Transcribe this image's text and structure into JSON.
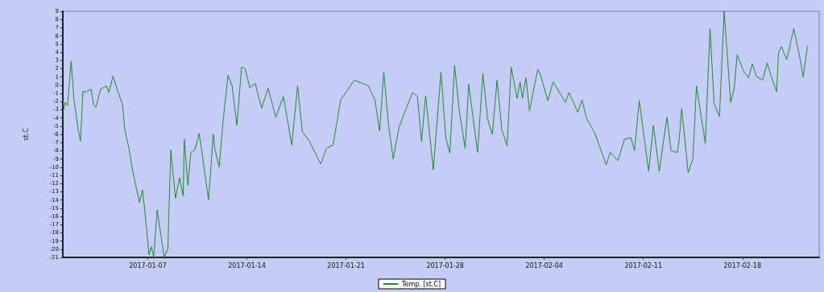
{
  "chart_data": {
    "type": "line",
    "ylabel": "st.C",
    "legend": "bottom",
    "grid": false,
    "marker": "none",
    "line_style": "solid",
    "xlim": [
      "2017-01-01",
      "2017-02-23T10:00"
    ],
    "xticks": [
      "2017-01-07",
      "2017-01-14",
      "2017-01-21",
      "2017-01-28",
      "2017-02-04",
      "2017-02-11",
      "2017-02-18"
    ],
    "ylim": [
      -21,
      9
    ],
    "yticks": [
      -21,
      -20,
      -19,
      -18,
      -17,
      -16,
      -15,
      -14,
      -13,
      -12,
      -11,
      -10,
      -9,
      -8,
      -7,
      -6,
      -5,
      -4,
      -3,
      -2,
      -1,
      0,
      1,
      2,
      3,
      4,
      5,
      6,
      7,
      8,
      9
    ],
    "x": [
      "2017-01-01T01:00",
      "2017-01-01T04:00",
      "2017-01-01T08:00",
      "2017-01-01T14:00",
      "2017-01-01T19:00",
      "2017-01-02T02:00",
      "2017-01-02T06:00",
      "2017-01-02T10:00",
      "2017-01-02T16:00",
      "2017-01-03T00:00",
      "2017-01-03T04:00",
      "2017-01-03T08:00",
      "2017-01-03T16:00",
      "2017-01-04T02:00",
      "2017-01-04T06:00",
      "2017-01-04T13:00",
      "2017-01-04T22:00",
      "2017-01-05T05:00",
      "2017-01-05T09:00",
      "2017-01-05T16:00",
      "2017-01-05T23:00",
      "2017-01-06T03:00",
      "2017-01-06T10:00",
      "2017-01-06T15:00",
      "2017-01-06T19:00",
      "2017-01-07T02:00",
      "2017-01-07T06:00",
      "2017-01-07T10:00",
      "2017-01-07T16:00",
      "2017-01-07T23:00",
      "2017-01-08T04:00",
      "2017-01-08T10:00",
      "2017-01-08T15:00",
      "2017-01-08T23:00",
      "2017-01-09T06:00",
      "2017-01-09T12:00",
      "2017-01-09T14:00",
      "2017-01-09T20:00",
      "2017-01-10T01:00",
      "2017-01-10T08:00",
      "2017-01-10T15:00",
      "2017-01-10T22:00",
      "2017-01-11T07:00",
      "2017-01-11T15:00",
      "2017-01-11T18:00",
      "2017-01-12T01:00",
      "2017-01-12T08:00",
      "2017-01-12T16:00",
      "2017-01-12T23:00",
      "2017-01-13T07:00",
      "2017-01-13T15:00",
      "2017-01-13T21:00",
      "2017-01-14T05:00",
      "2017-01-14T14:00",
      "2017-01-15T01:00",
      "2017-01-15T12:00",
      "2017-01-16T01:00",
      "2017-01-16T14:00",
      "2017-01-17T04:00",
      "2017-01-17T14:00",
      "2017-01-17T22:00",
      "2017-01-18T09:00",
      "2017-01-19T05:00",
      "2017-01-19T15:00",
      "2017-01-20T02:00",
      "2017-01-20T15:00",
      "2017-01-21T14:00",
      "2017-01-22T14:00",
      "2017-01-23T01:00",
      "2017-01-23T09:00",
      "2017-01-23T16:00",
      "2017-01-24T00:00",
      "2017-01-24T08:00",
      "2017-01-24T18:00",
      "2017-01-25T10:00",
      "2017-01-25T17:00",
      "2017-01-26T01:00",
      "2017-01-26T08:00",
      "2017-01-26T15:00",
      "2017-01-27T04:00",
      "2017-01-27T17:00",
      "2017-01-28T01:00",
      "2017-01-28T08:00",
      "2017-01-28T16:00",
      "2017-01-29T00:00",
      "2017-01-29T10:00",
      "2017-01-29T16:00",
      "2017-01-30T07:00",
      "2017-01-30T16:00",
      "2017-01-31T00:00",
      "2017-01-31T08:00",
      "2017-01-31T16:00",
      "2017-02-01T00:00",
      "2017-02-01T09:00",
      "2017-02-01T16:00",
      "2017-02-02T02:00",
      "2017-02-02T07:00",
      "2017-02-02T11:00",
      "2017-02-02T17:00",
      "2017-02-02T23:00",
      "2017-02-03T13:00",
      "2017-02-03T17:00",
      "2017-02-04T06:00",
      "2017-02-04T15:00",
      "2017-02-05T12:00",
      "2017-02-05T18:00",
      "2017-02-06T09:00",
      "2017-02-06T16:00",
      "2017-02-07T00:00",
      "2017-02-07T14:00",
      "2017-02-08T09:00",
      "2017-02-08T16:00",
      "2017-02-09T05:00",
      "2017-02-09T16:00",
      "2017-02-10T03:00",
      "2017-02-10T09:00",
      "2017-02-10T17:00",
      "2017-02-11T09:00",
      "2017-02-11T17:00",
      "2017-02-12T03:00",
      "2017-02-12T16:00",
      "2017-02-12T23:00",
      "2017-02-13T10:00",
      "2017-02-13T13:00",
      "2017-02-13T17:00",
      "2017-02-14T04:00",
      "2017-02-14T12:00",
      "2017-02-14T18:00",
      "2017-02-15T09:00",
      "2017-02-15T17:00",
      "2017-02-16T00:00",
      "2017-02-16T09:00",
      "2017-02-16T17:00",
      "2017-02-17T04:00",
      "2017-02-17T10:00",
      "2017-02-17T15:00",
      "2017-02-18T02:00",
      "2017-02-18T10:00",
      "2017-02-18T17:00",
      "2017-02-18T23:00",
      "2017-02-19T10:00",
      "2017-02-19T18:00",
      "2017-02-20T01:00",
      "2017-02-20T10:00",
      "2017-02-20T13:00",
      "2017-02-20T18:00",
      "2017-02-21T03:00",
      "2017-02-21T15:00",
      "2017-02-22T02:00",
      "2017-02-22T07:00",
      "2017-02-22T14:00"
    ],
    "series": [
      {
        "name": "Temp. [st.C]",
        "color": "#1f8a2a",
        "values": [
          -3.1,
          -2.1,
          -2.5,
          2.9,
          -1.8,
          -5.4,
          -6.8,
          -0.8,
          -0.8,
          -0.5,
          -2.4,
          -2.7,
          -0.5,
          -0.1,
          -0.9,
          1.1,
          -0.9,
          -2.3,
          -5.4,
          -7.7,
          -10.7,
          -12,
          -14.3,
          -12.8,
          -15.3,
          -20.7,
          -19.7,
          -21,
          -15.2,
          -18.7,
          -21,
          -20,
          -7.9,
          -13.8,
          -11.3,
          -13.5,
          -6.6,
          -12.2,
          -8.2,
          -7.9,
          -5.9,
          -9.3,
          -14,
          -6,
          -7.9,
          -10,
          -4.1,
          1.2,
          -0.1,
          -4.9,
          2.2,
          2,
          -0.3,
          0.2,
          -2.8,
          -0.4,
          -3.9,
          -1.4,
          -7.3,
          -0.1,
          -5.7,
          -6.7,
          -9.6,
          -7.7,
          -7.3,
          -1.8,
          0.6,
          -0.1,
          -1.8,
          -5.6,
          1.6,
          -4.8,
          -9,
          -5.1,
          -2.1,
          -0.9,
          -1.4,
          -6.9,
          -1.3,
          -10.3,
          1.6,
          -6.4,
          -8.3,
          2.4,
          -3.1,
          -7.7,
          0.1,
          -8.2,
          1.4,
          -4.1,
          -6,
          0.6,
          -5.4,
          -7.4,
          2.2,
          -1.6,
          0.4,
          -1.6,
          0.9,
          -3.1,
          1.9,
          1.4,
          -1.9,
          0.4,
          -2.1,
          -0.9,
          -3.3,
          -1.8,
          -4.1,
          -5.9,
          -9.7,
          -8.2,
          -9.2,
          -6.6,
          -6.4,
          -8,
          -1.9,
          -10.5,
          -4.9,
          -10.5,
          -3.9,
          -8,
          -8.2,
          -6.4,
          -2.9,
          -10.7,
          -9,
          -0.1,
          -7.1,
          6.9,
          -2.3,
          -3.8,
          9,
          -2.1,
          -0.4,
          3.7,
          1.7,
          0.9,
          2.6,
          1.1,
          0.6,
          2.7,
          1,
          -0.8,
          3.9,
          4.7,
          3.1,
          6.9,
          3.1,
          1,
          4.7
        ]
      }
    ]
  }
}
